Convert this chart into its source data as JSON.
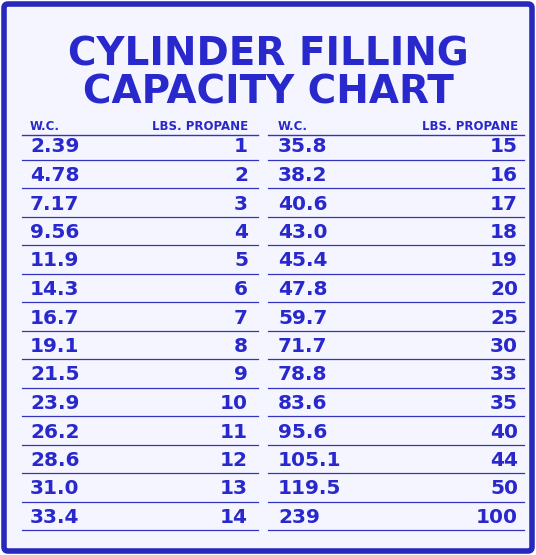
{
  "title_line1": "CYLINDER FILLING",
  "title_line2": "CAPACITY CHART",
  "title_color": "#2020bb",
  "border_color": "#2828bb",
  "background_color": "#ffffff",
  "inner_bg": "#f8f8ff",
  "header_left": [
    "W.C.",
    "LBS. PROPANE"
  ],
  "header_right": [
    "W.C.",
    "LBS. PROPANE"
  ],
  "left_data": [
    [
      "2.39",
      "1"
    ],
    [
      "4.78",
      "2"
    ],
    [
      "7.17",
      "3"
    ],
    [
      "9.56",
      "4"
    ],
    [
      "11.9",
      "5"
    ],
    [
      "14.3",
      "6"
    ],
    [
      "16.7",
      "7"
    ],
    [
      "19.1",
      "8"
    ],
    [
      "21.5",
      "9"
    ],
    [
      "23.9",
      "10"
    ],
    [
      "26.2",
      "11"
    ],
    [
      "28.6",
      "12"
    ],
    [
      "31.0",
      "13"
    ],
    [
      "33.4",
      "14"
    ]
  ],
  "right_data": [
    [
      "35.8",
      "15"
    ],
    [
      "38.2",
      "16"
    ],
    [
      "40.6",
      "17"
    ],
    [
      "43.0",
      "18"
    ],
    [
      "45.4",
      "19"
    ],
    [
      "47.8",
      "20"
    ],
    [
      "59.7",
      "25"
    ],
    [
      "71.7",
      "30"
    ],
    [
      "78.8",
      "33"
    ],
    [
      "83.6",
      "35"
    ],
    [
      "95.6",
      "40"
    ],
    [
      "105.1",
      "44"
    ],
    [
      "119.5",
      "50"
    ],
    [
      "239",
      "100"
    ]
  ],
  "text_color": "#2828cc",
  "line_color": "#3333bb",
  "figsize": [
    5.36,
    5.55
  ],
  "dpi": 100
}
